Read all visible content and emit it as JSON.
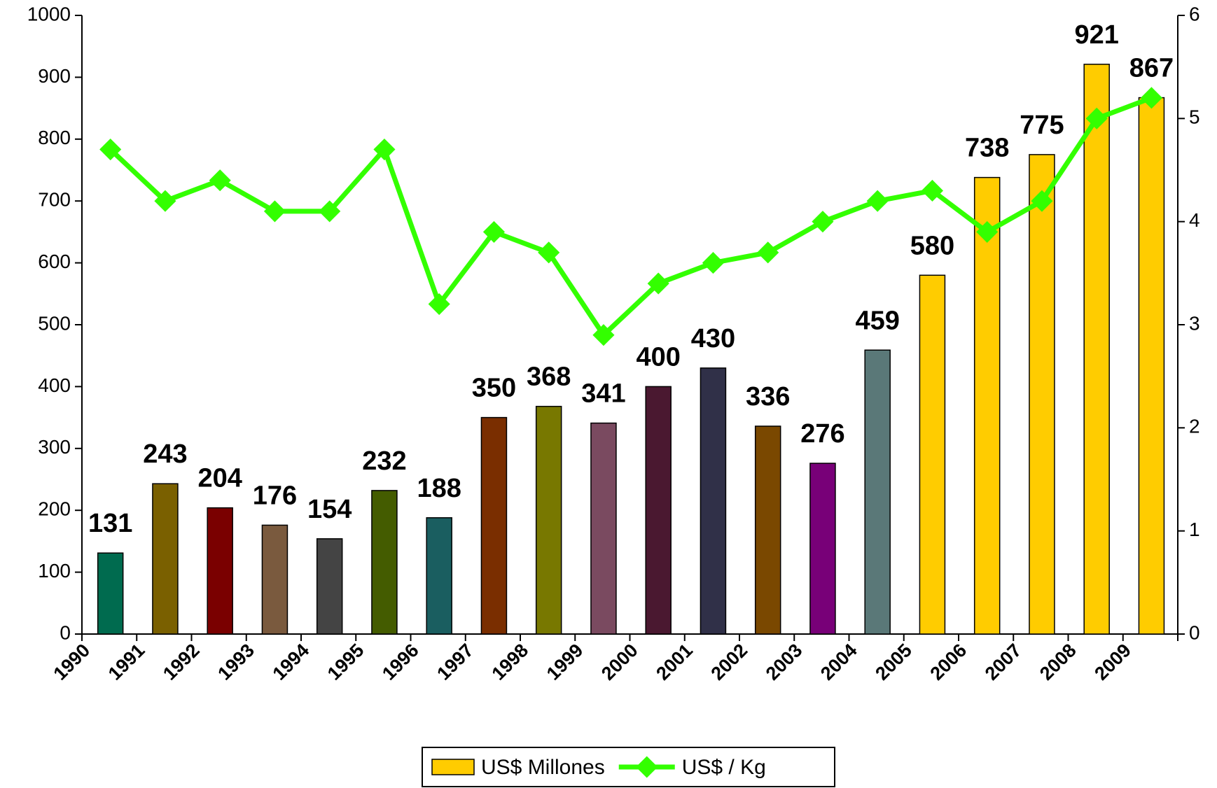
{
  "chart_data": {
    "type": "bar",
    "categories": [
      "1990",
      "1991",
      "1992",
      "1993",
      "1994",
      "1995",
      "1996",
      "1997",
      "1998",
      "1999",
      "2000",
      "2001",
      "2002",
      "2003",
      "2004",
      "2005",
      "2006",
      "2007",
      "2008",
      "2009"
    ],
    "series": [
      {
        "name": "US$ Millones",
        "type": "bar",
        "color": "#FFCC00",
        "bar_colors": [
          "#006B4F",
          "#7A6000",
          "#7A0000",
          "#7A5A3E",
          "#444444",
          "#445C00",
          "#1A5E60",
          "#7A2E00",
          "#787800",
          "#7A4A60",
          "#4A1830",
          "#303048",
          "#7A4800",
          "#780078",
          "#5A7878",
          "#FFCC00",
          "#FFCC00",
          "#FFCC00",
          "#FFCC00",
          "#FFCC00"
        ],
        "values": [
          131,
          243,
          204,
          176,
          154,
          232,
          188,
          350,
          368,
          341,
          400,
          430,
          336,
          276,
          459,
          580,
          738,
          775,
          921,
          867
        ]
      },
      {
        "name": "US$ / Kg",
        "type": "line",
        "color": "#33FF00",
        "axis": "y2",
        "values": [
          4.7,
          4.2,
          4.4,
          4.1,
          4.1,
          4.7,
          3.2,
          3.9,
          3.7,
          2.9,
          3.4,
          3.6,
          3.7,
          4.0,
          4.2,
          4.3,
          3.9,
          4.2,
          5.0,
          5.2
        ]
      }
    ],
    "ylim": [
      0,
      1000
    ],
    "yticks": [
      0,
      100,
      200,
      300,
      400,
      500,
      600,
      700,
      800,
      900,
      1000
    ],
    "y2lim": [
      0,
      6
    ],
    "y2ticks": [
      0,
      1,
      2,
      3,
      4,
      5,
      6
    ],
    "legend": "bottom"
  }
}
